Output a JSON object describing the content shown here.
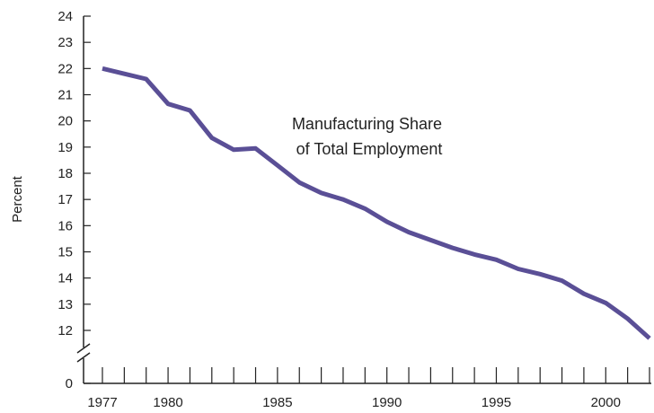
{
  "chart_data": {
    "type": "line",
    "ylabel": "Percent",
    "annotation": [
      "Manufacturing Share",
      "of Total Employment"
    ],
    "x_tick_labels": [
      "1977",
      "1980",
      "1985",
      "1990",
      "1995",
      "2000"
    ],
    "y_tick_labels": [
      "0",
      "12",
      "13",
      "14",
      "15",
      "16",
      "17",
      "18",
      "19",
      "20",
      "21",
      "22",
      "23",
      "24"
    ],
    "ylim": [
      11,
      24
    ],
    "y_axis_break": true,
    "series": [
      {
        "color": "#5a4f96",
        "points": [
          {
            "x": 1977,
            "y": 22.0
          },
          {
            "x": 1978,
            "y": 21.8
          },
          {
            "x": 1979,
            "y": 21.6
          },
          {
            "x": 1980,
            "y": 20.65
          },
          {
            "x": 1981,
            "y": 20.4
          },
          {
            "x": 1982,
            "y": 19.35
          },
          {
            "x": 1983,
            "y": 18.9
          },
          {
            "x": 1984,
            "y": 18.95
          },
          {
            "x": 1985,
            "y": 18.3
          },
          {
            "x": 1986,
            "y": 17.65
          },
          {
            "x": 1987,
            "y": 17.25
          },
          {
            "x": 1988,
            "y": 17.0
          },
          {
            "x": 1989,
            "y": 16.65
          },
          {
            "x": 1990,
            "y": 16.15
          },
          {
            "x": 1991,
            "y": 15.75
          },
          {
            "x": 1992,
            "y": 15.45
          },
          {
            "x": 1993,
            "y": 15.15
          },
          {
            "x": 1994,
            "y": 14.9
          },
          {
            "x": 1995,
            "y": 14.7
          },
          {
            "x": 1996,
            "y": 14.35
          },
          {
            "x": 1997,
            "y": 14.15
          },
          {
            "x": 1998,
            "y": 13.9
          },
          {
            "x": 1999,
            "y": 13.4
          },
          {
            "x": 2000,
            "y": 13.05
          },
          {
            "x": 2001,
            "y": 12.45
          },
          {
            "x": 2002,
            "y": 11.7
          }
        ]
      }
    ],
    "grid": false,
    "colors": {
      "line": "#5a4f96",
      "axis": "#222222"
    }
  }
}
